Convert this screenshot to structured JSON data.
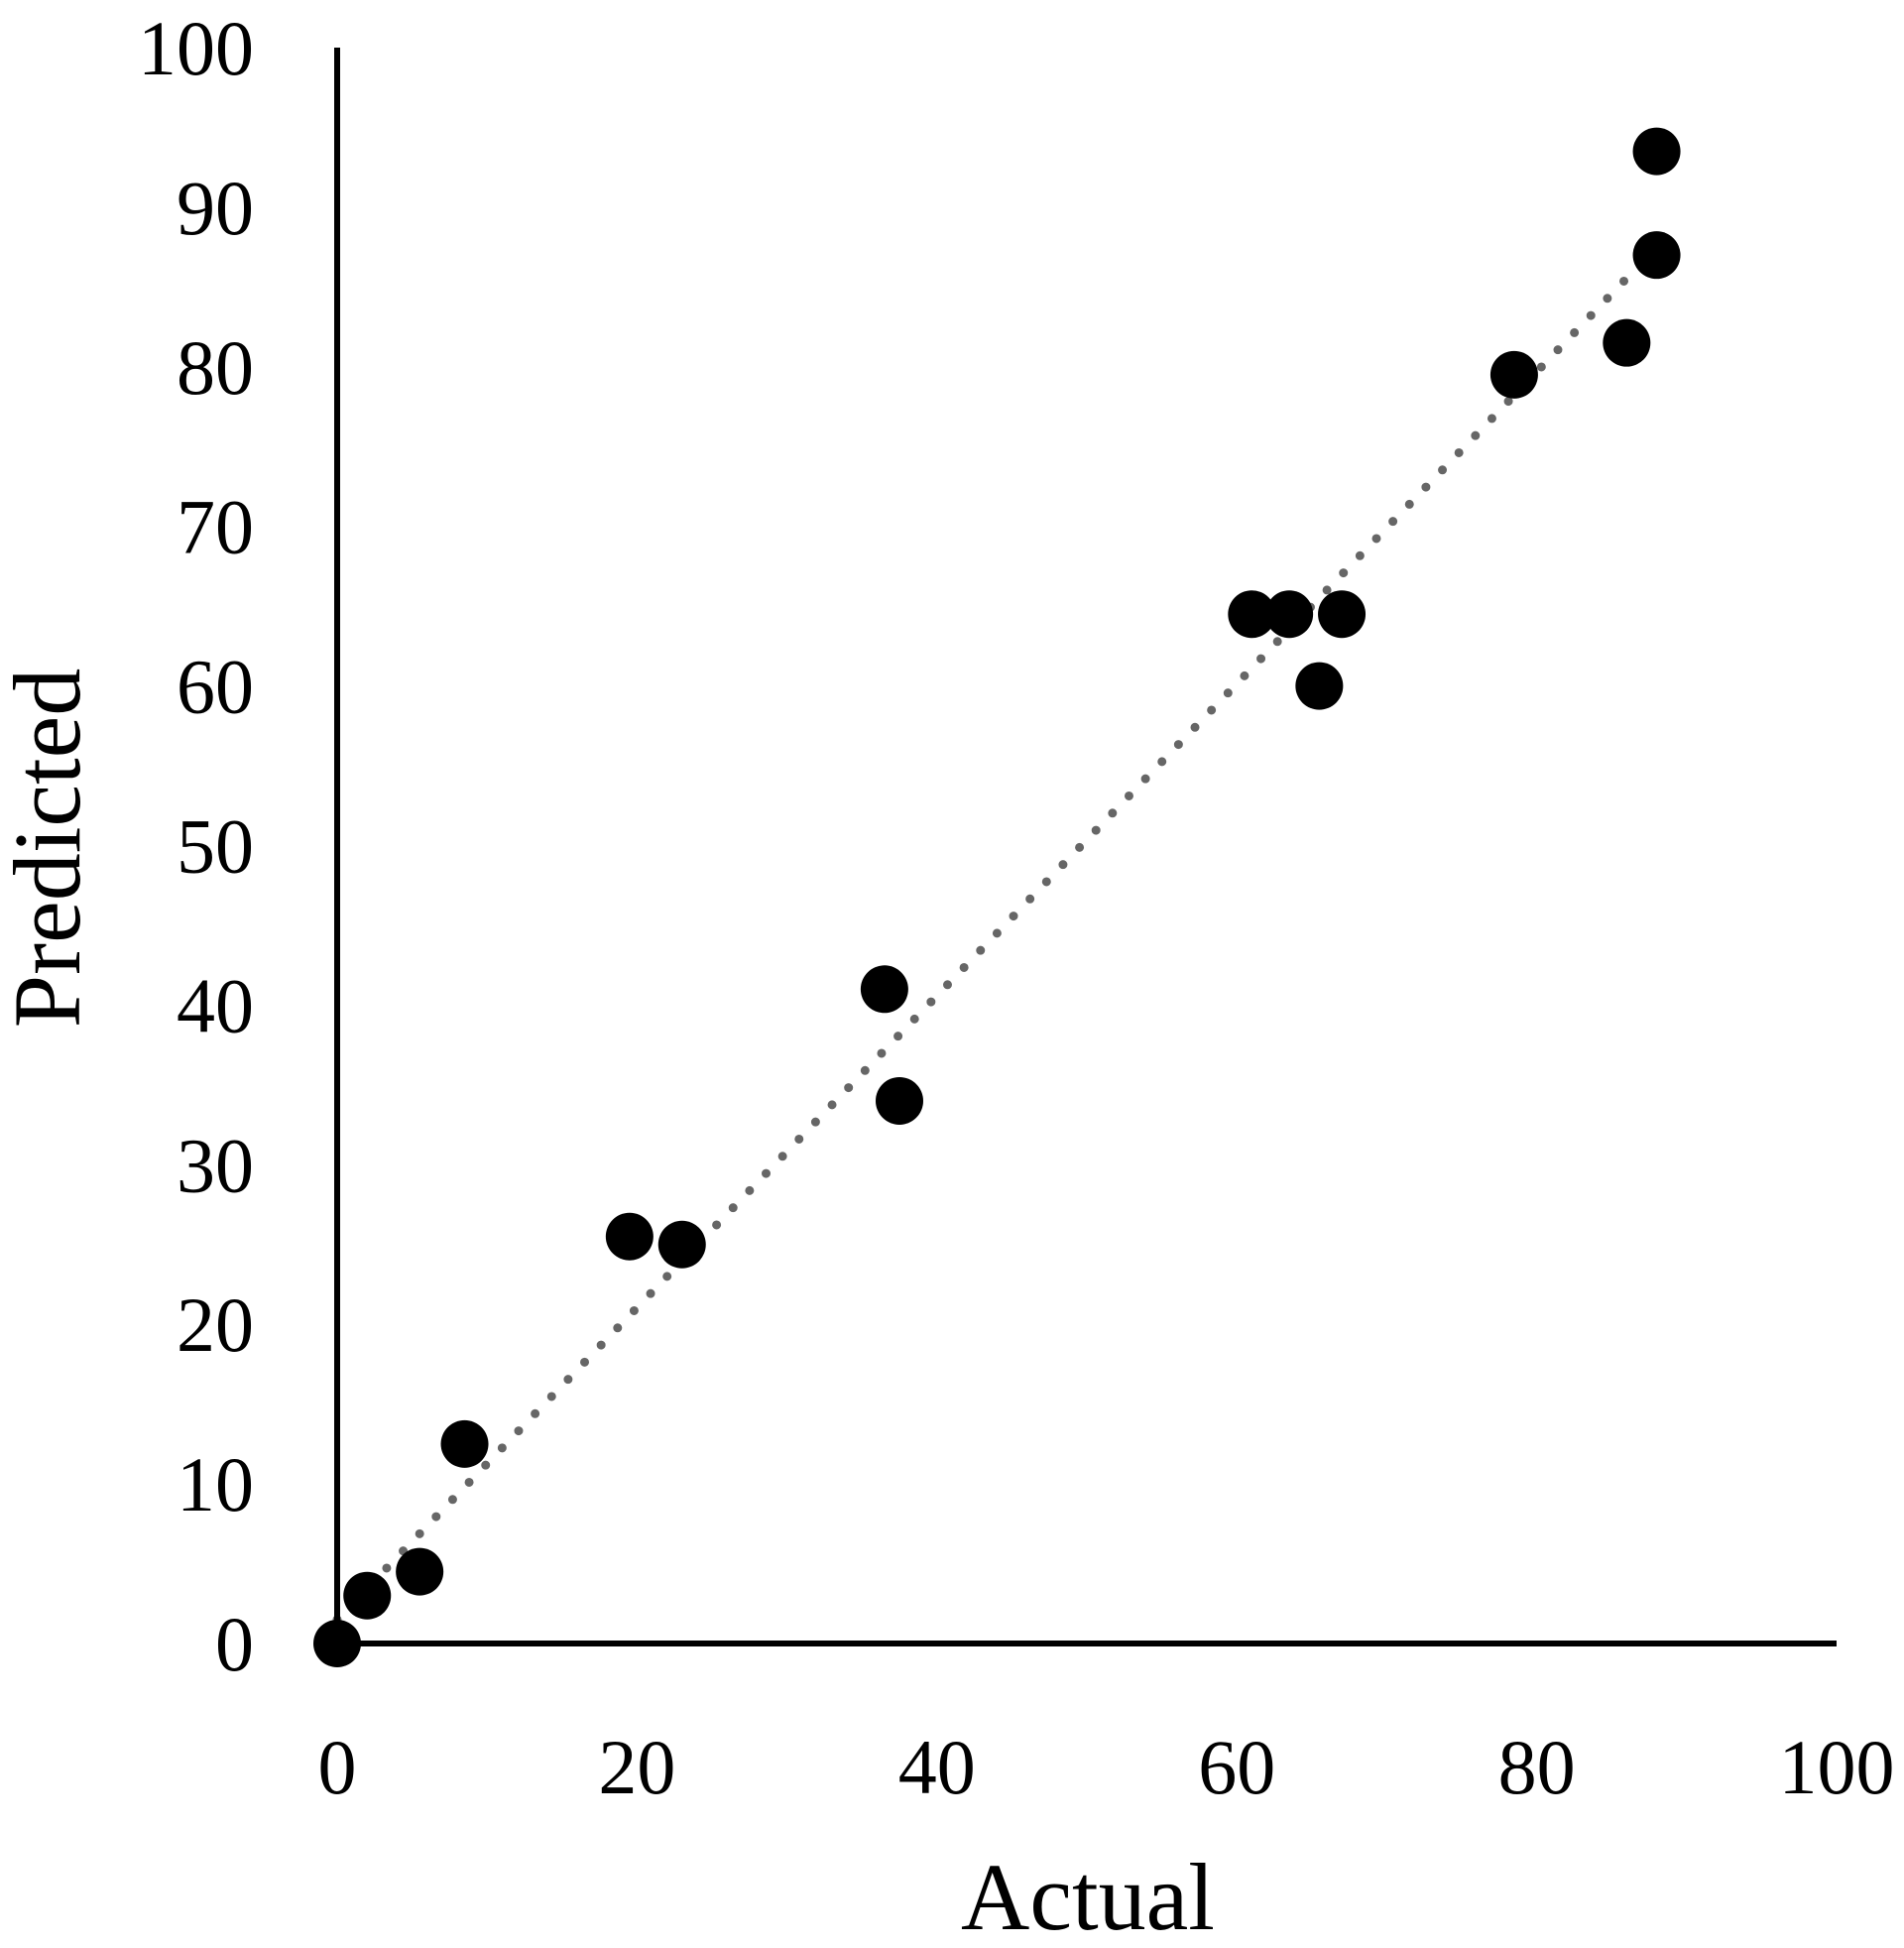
{
  "chart_data": {
    "type": "scatter",
    "title": "",
    "xlabel": "Actual",
    "ylabel": "Predicted",
    "xlim": [
      0,
      100
    ],
    "ylim": [
      0,
      100
    ],
    "xticks": [
      0,
      20,
      40,
      60,
      80,
      100
    ],
    "yticks": [
      0,
      10,
      20,
      30,
      40,
      50,
      60,
      70,
      80,
      90,
      100
    ],
    "xtick_labels": [
      "0",
      "20",
      "40",
      "60",
      "80",
      "100"
    ],
    "ytick_labels": [
      "0",
      "10",
      "20",
      "30",
      "40",
      "50",
      "60",
      "70",
      "80",
      "90",
      "100"
    ],
    "grid": false,
    "legend": "none",
    "colors": {
      "points": "#000000",
      "axes": "#000000",
      "trendline": "#666666"
    },
    "points": [
      {
        "x": 0,
        "y": 0
      },
      {
        "x": 2,
        "y": 3
      },
      {
        "x": 5.5,
        "y": 4.5
      },
      {
        "x": 8.5,
        "y": 12.5
      },
      {
        "x": 19.5,
        "y": 25.5
      },
      {
        "x": 23,
        "y": 25
      },
      {
        "x": 36.5,
        "y": 41
      },
      {
        "x": 37.5,
        "y": 34
      },
      {
        "x": 61,
        "y": 64.5
      },
      {
        "x": 63.5,
        "y": 64.5
      },
      {
        "x": 67,
        "y": 64.5
      },
      {
        "x": 65.5,
        "y": 60
      },
      {
        "x": 78.5,
        "y": 79.5
      },
      {
        "x": 86,
        "y": 81.5
      },
      {
        "x": 88,
        "y": 87
      },
      {
        "x": 88,
        "y": 93.5
      }
    ],
    "trendline": {
      "style": "dotted",
      "x": [
        0,
        88
      ],
      "y": [
        1.5,
        87.5
      ]
    }
  }
}
